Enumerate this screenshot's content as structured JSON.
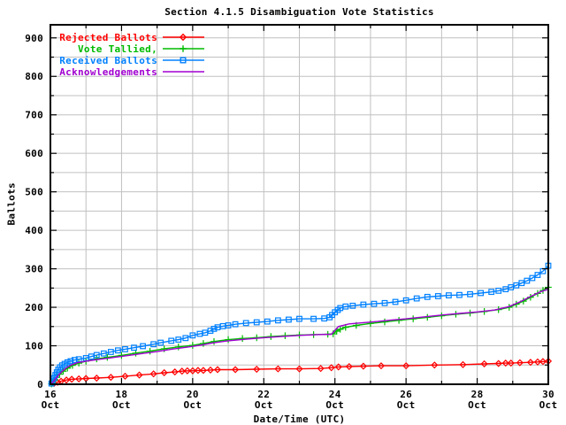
{
  "chart_data": {
    "type": "line",
    "title": "Section 4.1.5 Disambiguation Vote Statistics",
    "xlabel": "Date/Time (UTC)",
    "ylabel": "Ballots",
    "x_unit": "days after 16 Oct 00:00 UTC",
    "xlim": [
      0,
      14
    ],
    "ylim": [
      0,
      934
    ],
    "y_ticks": [
      0,
      100,
      200,
      300,
      400,
      500,
      600,
      700,
      800,
      900
    ],
    "y_minor_step": 50,
    "x_minor_step": 1,
    "grid": {
      "on": true,
      "color": "#c0c0c0"
    },
    "x_ticks": [
      {
        "x": 0,
        "day": "16",
        "month": "Oct"
      },
      {
        "x": 2,
        "day": "18",
        "month": "Oct"
      },
      {
        "x": 4,
        "day": "20",
        "month": "Oct"
      },
      {
        "x": 6,
        "day": "22",
        "month": "Oct"
      },
      {
        "x": 8,
        "day": "24",
        "month": "Oct"
      },
      {
        "x": 10,
        "day": "26",
        "month": "Oct"
      },
      {
        "x": 12,
        "day": "28",
        "month": "Oct"
      },
      {
        "x": 14,
        "day": "30",
        "month": "Oct"
      }
    ],
    "legend_position": "top-left",
    "series": [
      {
        "name": "Rejected Ballots",
        "color": "#ff0000",
        "marker": "diamond",
        "x": [
          0.1,
          0.2,
          0.3,
          0.45,
          0.6,
          0.8,
          1.0,
          1.3,
          1.7,
          2.1,
          2.5,
          2.9,
          3.2,
          3.5,
          3.7,
          3.85,
          4.0,
          4.15,
          4.3,
          4.5,
          4.7,
          5.2,
          5.8,
          6.4,
          7.0,
          7.6,
          7.9,
          8.1,
          8.4,
          8.8,
          9.3,
          10.0,
          10.8,
          11.6,
          12.2,
          12.6,
          12.8,
          12.95,
          13.2,
          13.5,
          13.7,
          13.85,
          14.0
        ],
        "y": [
          2,
          5,
          8,
          11,
          13,
          14,
          15,
          16,
          18,
          21,
          24,
          27,
          30,
          32,
          34,
          35,
          35,
          36,
          36,
          37,
          38,
          38,
          39,
          40,
          40,
          41,
          43,
          45,
          46,
          47,
          48,
          48,
          50,
          51,
          53,
          54,
          55,
          55,
          56,
          57,
          58,
          59,
          60
        ]
      },
      {
        "name": "Vote Tallied,",
        "color": "#00bb00",
        "marker": "plus",
        "x": [
          0.03,
          0.07,
          0.12,
          0.18,
          0.26,
          0.36,
          0.48,
          0.62,
          0.8,
          1.0,
          1.3,
          1.6,
          2.0,
          2.4,
          2.8,
          3.2,
          3.6,
          4.0,
          4.3,
          4.6,
          5.0,
          5.4,
          5.8,
          6.2,
          6.6,
          7.0,
          7.4,
          7.8,
          7.95,
          8.05,
          8.15,
          8.3,
          8.6,
          9.0,
          9.4,
          9.8,
          10.2,
          10.6,
          11.0,
          11.4,
          11.8,
          12.2,
          12.6,
          12.9,
          13.1,
          13.3,
          13.5,
          13.7,
          13.85,
          14.0
        ],
        "y": [
          1,
          5,
          11,
          18,
          26,
          34,
          42,
          49,
          55,
          60,
          66,
          70,
          75,
          81,
          86,
          92,
          97,
          101,
          106,
          111,
          116,
          119,
          121,
          124,
          126,
          128,
          129,
          130,
          131,
          138,
          143,
          148,
          153,
          158,
          162,
          166,
          170,
          174,
          178,
          182,
          185,
          189,
          194,
          200,
          208,
          216,
          226,
          236,
          244,
          252
        ]
      },
      {
        "name": "Received Ballots",
        "color": "#0080ff",
        "marker": "square",
        "x": [
          0.03,
          0.06,
          0.1,
          0.14,
          0.18,
          0.22,
          0.27,
          0.33,
          0.4,
          0.48,
          0.57,
          0.68,
          0.8,
          1.0,
          1.15,
          1.3,
          1.5,
          1.7,
          1.9,
          2.1,
          2.35,
          2.6,
          2.9,
          3.1,
          3.4,
          3.6,
          3.8,
          4.0,
          4.2,
          4.35,
          4.5,
          4.6,
          4.7,
          4.85,
          5.0,
          5.2,
          5.5,
          5.8,
          6.1,
          6.4,
          6.7,
          7.0,
          7.4,
          7.7,
          7.85,
          7.92,
          8.0,
          8.08,
          8.15,
          8.3,
          8.5,
          8.8,
          9.1,
          9.4,
          9.7,
          10.0,
          10.3,
          10.6,
          10.9,
          11.2,
          11.5,
          11.8,
          12.1,
          12.4,
          12.6,
          12.8,
          12.95,
          13.1,
          13.25,
          13.4,
          13.55,
          13.7,
          13.85,
          14.0
        ],
        "y": [
          2,
          8,
          16,
          24,
          31,
          38,
          44,
          49,
          53,
          57,
          60,
          63,
          65,
          68,
          72,
          76,
          80,
          84,
          88,
          91,
          95,
          99,
          104,
          108,
          113,
          116,
          120,
          127,
          131,
          134,
          139,
          144,
          148,
          151,
          153,
          156,
          159,
          161,
          163,
          166,
          168,
          170,
          170,
          171,
          174,
          180,
          187,
          193,
          198,
          202,
          204,
          207,
          209,
          211,
          214,
          218,
          223,
          227,
          229,
          231,
          232,
          234,
          237,
          240,
          243,
          247,
          252,
          257,
          263,
          269,
          276,
          284,
          294,
          308
        ]
      },
      {
        "name": "Acknowledgements",
        "color": "#a000d0",
        "marker": "none",
        "x": [
          0.03,
          0.08,
          0.14,
          0.22,
          0.32,
          0.44,
          0.58,
          0.75,
          1.0,
          1.4,
          1.8,
          2.2,
          2.6,
          3.0,
          3.4,
          3.8,
          4.2,
          4.6,
          5.0,
          5.5,
          6.0,
          6.5,
          7.0,
          7.5,
          7.9,
          8.1,
          8.4,
          8.8,
          9.2,
          9.6,
          10.0,
          10.5,
          11.0,
          11.5,
          12.0,
          12.5,
          12.9,
          13.2,
          13.5,
          13.8,
          14.0
        ],
        "y": [
          2,
          7,
          14,
          23,
          33,
          42,
          50,
          56,
          60,
          65,
          70,
          75,
          80,
          85,
          91,
          96,
          101,
          108,
          113,
          117,
          121,
          124,
          127,
          129,
          130,
          150,
          157,
          160,
          163,
          167,
          170,
          175,
          180,
          184,
          188,
          193,
          202,
          214,
          228,
          241,
          247
        ]
      }
    ]
  }
}
